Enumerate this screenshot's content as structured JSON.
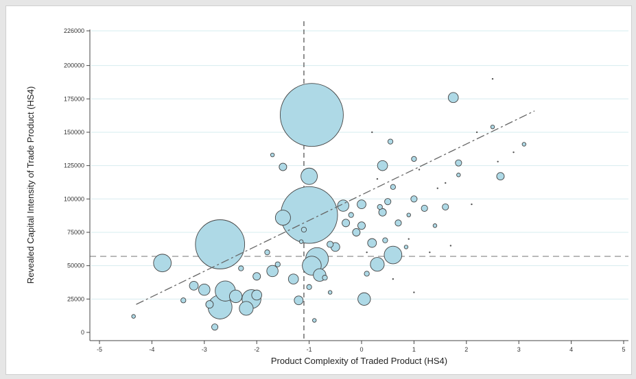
{
  "chart_data": {
    "type": "scatter",
    "title": "",
    "xlabel": "Product Complexity of Traded Product (HS4)",
    "ylabel": "Revealed Capital Intensity of Trade Product (HS4)",
    "xlim": [
      -5,
      5
    ],
    "ylim": [
      0,
      226000
    ],
    "xticks": [
      -5,
      -4,
      -3,
      -2,
      -1,
      0,
      1,
      2,
      3,
      4,
      5
    ],
    "yticks": [
      0,
      25000,
      50000,
      75000,
      100000,
      125000,
      150000,
      175000,
      200000,
      226000
    ],
    "grid": "horizontal",
    "bubble_color": "#aed9e6",
    "reference_lines": {
      "x": -1.1,
      "y": 57000
    },
    "fit_line": {
      "x": [
        -4.3,
        3.3
      ],
      "y": [
        21000,
        166000
      ]
    },
    "points": [
      {
        "x": -0.95,
        "y": 163000,
        "s": 100
      },
      {
        "x": -1.0,
        "y": 88000,
        "s": 90
      },
      {
        "x": -2.7,
        "y": 66000,
        "s": 78
      },
      {
        "x": -3.8,
        "y": 52000,
        "s": 28
      },
      {
        "x": -2.7,
        "y": 19000,
        "s": 38
      },
      {
        "x": -2.6,
        "y": 31000,
        "s": 32
      },
      {
        "x": -2.1,
        "y": 25000,
        "s": 30
      },
      {
        "x": -2.2,
        "y": 18000,
        "s": 22
      },
      {
        "x": -2.4,
        "y": 27000,
        "s": 20
      },
      {
        "x": -0.85,
        "y": 55000,
        "s": 36
      },
      {
        "x": -0.95,
        "y": 50000,
        "s": 30
      },
      {
        "x": -0.8,
        "y": 43000,
        "s": 20
      },
      {
        "x": -1.0,
        "y": 117000,
        "s": 26
      },
      {
        "x": -1.5,
        "y": 86000,
        "s": 24
      },
      {
        "x": -1.7,
        "y": 46000,
        "s": 18
      },
      {
        "x": 0.3,
        "y": 51000,
        "s": 22
      },
      {
        "x": 0.6,
        "y": 58000,
        "s": 28
      },
      {
        "x": 0.05,
        "y": 25000,
        "s": 20
      },
      {
        "x": 1.75,
        "y": 176000,
        "s": 16
      },
      {
        "x": -0.35,
        "y": 95000,
        "s": 18
      },
      {
        "x": 0.4,
        "y": 125000,
        "s": 16
      },
      {
        "x": 2.65,
        "y": 117000,
        "s": 12
      },
      {
        "x": -3.0,
        "y": 32000,
        "s": 18
      },
      {
        "x": -3.2,
        "y": 35000,
        "s": 14
      },
      {
        "x": -2.0,
        "y": 28000,
        "s": 16
      },
      {
        "x": -1.3,
        "y": 40000,
        "s": 16
      },
      {
        "x": -1.2,
        "y": 24000,
        "s": 14
      },
      {
        "x": -1.5,
        "y": 124000,
        "s": 12
      },
      {
        "x": 0.0,
        "y": 96000,
        "s": 14
      },
      {
        "x": 0.4,
        "y": 90000,
        "s": 12
      },
      {
        "x": -0.5,
        "y": 64000,
        "s": 14
      },
      {
        "x": -0.3,
        "y": 82000,
        "s": 12
      },
      {
        "x": 0.2,
        "y": 67000,
        "s": 14
      },
      {
        "x": 1.2,
        "y": 93000,
        "s": 10
      },
      {
        "x": 1.6,
        "y": 94000,
        "s": 10
      },
      {
        "x": 1.85,
        "y": 127000,
        "s": 10
      },
      {
        "x": 1.0,
        "y": 100000,
        "s": 10
      },
      {
        "x": 0.7,
        "y": 82000,
        "s": 10
      },
      {
        "x": -2.8,
        "y": 4000,
        "s": 10
      },
      {
        "x": -2.9,
        "y": 21000,
        "s": 12
      },
      {
        "x": -3.4,
        "y": 24000,
        "s": 8
      },
      {
        "x": -1.8,
        "y": 60000,
        "s": 8
      },
      {
        "x": -2.0,
        "y": 42000,
        "s": 12
      },
      {
        "x": -0.6,
        "y": 66000,
        "s": 10
      },
      {
        "x": -0.1,
        "y": 75000,
        "s": 12
      },
      {
        "x": 0.0,
        "y": 80000,
        "s": 12
      },
      {
        "x": 0.5,
        "y": 98000,
        "s": 10
      },
      {
        "x": 0.6,
        "y": 109000,
        "s": 8
      },
      {
        "x": 1.0,
        "y": 130000,
        "s": 8
      },
      {
        "x": 0.55,
        "y": 143000,
        "s": 8
      },
      {
        "x": 3.1,
        "y": 141000,
        "s": 6
      },
      {
        "x": 2.5,
        "y": 154000,
        "s": 6
      },
      {
        "x": -1.7,
        "y": 133000,
        "s": 6
      },
      {
        "x": -0.9,
        "y": 9000,
        "s": 6
      },
      {
        "x": -4.35,
        "y": 12000,
        "s": 6
      },
      {
        "x": -1.1,
        "y": 77000,
        "s": 8
      },
      {
        "x": -1.15,
        "y": 68000,
        "s": 6
      },
      {
        "x": 0.45,
        "y": 69000,
        "s": 8
      },
      {
        "x": 0.85,
        "y": 64000,
        "s": 6
      },
      {
        "x": 1.85,
        "y": 118000,
        "s": 6
      },
      {
        "x": -0.2,
        "y": 88000,
        "s": 8
      },
      {
        "x": 0.35,
        "y": 94000,
        "s": 8
      },
      {
        "x": -1.6,
        "y": 51000,
        "s": 8
      },
      {
        "x": -2.3,
        "y": 48000,
        "s": 8
      },
      {
        "x": -0.7,
        "y": 41000,
        "s": 8
      },
      {
        "x": 0.1,
        "y": 44000,
        "s": 8
      },
      {
        "x": -1.0,
        "y": 34000,
        "s": 8
      },
      {
        "x": -0.6,
        "y": 30000,
        "s": 6
      },
      {
        "x": 1.4,
        "y": 80000,
        "s": 6
      },
      {
        "x": 0.9,
        "y": 88000,
        "s": 6
      }
    ]
  }
}
